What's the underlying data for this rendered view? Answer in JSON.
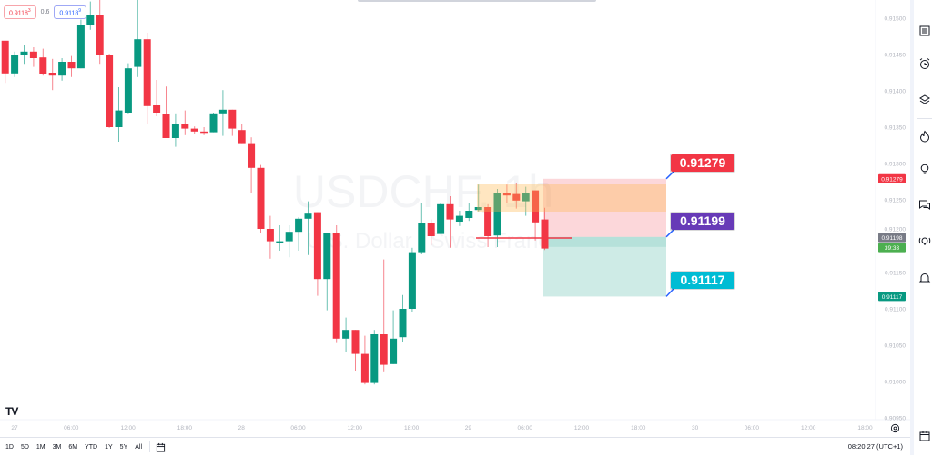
{
  "symbol": {
    "watermark_title": "USDCHF, 1h",
    "watermark_subtitle": "U.S. Dollar / Swiss Franc"
  },
  "legend": {
    "sell_price": "0.9118",
    "sell_sup": "3",
    "spread": "0.6",
    "buy_price": "0.9118",
    "buy_sup": "9"
  },
  "colors": {
    "up": "#089981",
    "down": "#f23645",
    "stop_zone": "#f23645",
    "target_zone": "#089981",
    "highlight": "#ffb74d",
    "stop_callout": "#f23645",
    "entry_callout": "#673ab7",
    "target_callout": "#00bcd4"
  },
  "chart_data": {
    "type": "candlestick",
    "interval": "1h",
    "ylim": [
      0.9095,
      0.91525
    ],
    "price_ticks": [
      "0.91500",
      "0.91450",
      "0.91400",
      "0.91350",
      "0.91300",
      "0.91250",
      "0.91200",
      "0.91150",
      "0.91100",
      "0.91050",
      "0.91000",
      "0.90950"
    ],
    "time_ticks": [
      "27",
      "06:00",
      "12:00",
      "18:00",
      "28",
      "06:00",
      "12:00",
      "18:00",
      "29",
      "06:00",
      "12:00",
      "18:00",
      "30",
      "06:00",
      "12:00",
      "18:00"
    ],
    "ohlc": [
      [
        0.91469,
        0.91469,
        0.91411,
        0.91424
      ],
      [
        0.91424,
        0.91454,
        0.91419,
        0.9145
      ],
      [
        0.91449,
        0.91463,
        0.91436,
        0.91454
      ],
      [
        0.91454,
        0.9146,
        0.91433,
        0.91445
      ],
      [
        0.91446,
        0.91458,
        0.91421,
        0.91423
      ],
      [
        0.91425,
        0.91444,
        0.91401,
        0.91421
      ],
      [
        0.91421,
        0.91445,
        0.91414,
        0.9144
      ],
      [
        0.9144,
        0.91448,
        0.91419,
        0.91431
      ],
      [
        0.91431,
        0.91498,
        0.91431,
        0.91491
      ],
      [
        0.91491,
        0.91523,
        0.91484,
        0.91504
      ],
      [
        0.91504,
        0.91525,
        0.91436,
        0.91449
      ],
      [
        0.91449,
        0.91451,
        0.91349,
        0.9135
      ],
      [
        0.9135,
        0.91405,
        0.9133,
        0.91373
      ],
      [
        0.9137,
        0.91438,
        0.91369,
        0.91431
      ],
      [
        0.91433,
        0.91525,
        0.91419,
        0.91471
      ],
      [
        0.91471,
        0.9148,
        0.91354,
        0.91379
      ],
      [
        0.9138,
        0.91415,
        0.91365,
        0.9137
      ],
      [
        0.91368,
        0.91406,
        0.91335,
        0.91335
      ],
      [
        0.91335,
        0.91369,
        0.91323,
        0.91355
      ],
      [
        0.91355,
        0.91373,
        0.91339,
        0.91348
      ],
      [
        0.91348,
        0.91351,
        0.9134,
        0.91344
      ],
      [
        0.91344,
        0.9135,
        0.91339,
        0.91343
      ],
      [
        0.91343,
        0.9137,
        0.91343,
        0.91369
      ],
      [
        0.91369,
        0.91401,
        0.91338,
        0.91374
      ],
      [
        0.91374,
        0.91374,
        0.91338,
        0.91348
      ],
      [
        0.91346,
        0.91354,
        0.91328,
        0.91328
      ],
      [
        0.91328,
        0.91336,
        0.9126,
        0.91294
      ],
      [
        0.91294,
        0.91298,
        0.91205,
        0.9121
      ],
      [
        0.9121,
        0.91228,
        0.91169,
        0.91193
      ],
      [
        0.9119,
        0.91215,
        0.9118,
        0.91193
      ],
      [
        0.91193,
        0.91215,
        0.91171,
        0.91206
      ],
      [
        0.91206,
        0.91226,
        0.9118,
        0.91224
      ],
      [
        0.91224,
        0.91248,
        0.91174,
        0.91231
      ],
      [
        0.91233,
        0.91233,
        0.91118,
        0.91141
      ],
      [
        0.91141,
        0.91205,
        0.91098,
        0.91204
      ],
      [
        0.91205,
        0.91215,
        0.91053,
        0.91059
      ],
      [
        0.91059,
        0.91088,
        0.91041,
        0.91071
      ],
      [
        0.91071,
        0.91071,
        0.91015,
        0.91038
      ],
      [
        0.91038,
        0.91063,
        0.90996,
        0.90998
      ],
      [
        0.90998,
        0.91071,
        0.90996,
        0.91065
      ],
      [
        0.91065,
        0.91168,
        0.91014,
        0.91023
      ],
      [
        0.91024,
        0.91098,
        0.91024,
        0.91059
      ],
      [
        0.91061,
        0.91119,
        0.91054,
        0.911
      ],
      [
        0.911,
        0.91184,
        0.91095,
        0.91178
      ],
      [
        0.91178,
        0.91246,
        0.91175,
        0.91218
      ],
      [
        0.91218,
        0.91223,
        0.91188,
        0.912
      ],
      [
        0.91203,
        0.91246,
        0.91203,
        0.91244
      ],
      [
        0.91244,
        0.91255,
        0.91184,
        0.91223
      ],
      [
        0.9122,
        0.91235,
        0.91214,
        0.91228
      ],
      [
        0.91225,
        0.91245,
        0.91221,
        0.91235
      ],
      [
        0.91236,
        0.91271,
        0.91234,
        0.9124
      ],
      [
        0.9124,
        0.91244,
        0.91185,
        0.912
      ],
      [
        0.91201,
        0.91265,
        0.91185,
        0.91259
      ],
      [
        0.9126,
        0.91271,
        0.91246,
        0.91256
      ],
      [
        0.91258,
        0.91273,
        0.91238,
        0.91249
      ],
      [
        0.91248,
        0.91268,
        0.91228,
        0.9126
      ],
      [
        0.91263,
        0.91263,
        0.91194,
        0.91219
      ],
      [
        0.91223,
        0.91239,
        0.91181,
        0.91183
      ]
    ],
    "price_tags": [
      {
        "label": "0.91279",
        "price": 0.91279,
        "color": "#f23645"
      },
      {
        "label": "0.91198",
        "price": 0.91198,
        "color": "#787b86"
      },
      {
        "label": "39:33",
        "price": 0.91186,
        "color": "#4caf50"
      },
      {
        "label": "0.91117",
        "price": 0.91117,
        "color": "#089981"
      }
    ]
  },
  "position_tool": {
    "stop_loss": 0.91279,
    "entry": 0.91199,
    "take_profit": 0.91117,
    "stop_label": "0.91279",
    "entry_label": "0.91199",
    "target_label": "0.91117"
  },
  "bottombar": {
    "ranges": [
      "1D",
      "5D",
      "1M",
      "3M",
      "6M",
      "YTD",
      "1Y",
      "5Y",
      "All"
    ],
    "clock": "08:20:27 (UTC+1)"
  },
  "right_toolbar": [
    "watchlist-icon",
    "alarm-clock-icon",
    "layers-icon",
    "fire-icon",
    "lightbulb-icon",
    "chat-icon",
    "idea-stream-icon",
    "bell-icon",
    "calendar-icon"
  ]
}
